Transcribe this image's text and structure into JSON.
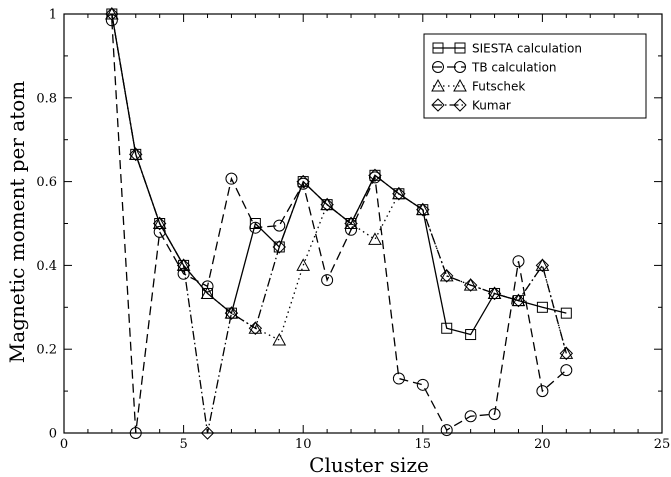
{
  "chart_data": {
    "type": "line",
    "xlabel": "Cluster size",
    "ylabel": "Magnetic moment per atom",
    "xlim": [
      0,
      25
    ],
    "ylim": [
      0,
      1
    ],
    "xticks": [
      0,
      5,
      10,
      15,
      20,
      25
    ],
    "yticks": [
      0,
      0.2,
      0.4,
      0.6,
      0.8,
      1
    ],
    "ytick_labels": [
      "0",
      "0.2",
      "0.4",
      "0.6",
      "0.8",
      "1"
    ],
    "grid": false,
    "legend_position": "top-right",
    "series": [
      {
        "name": "SIESTA  calculation",
        "marker": "square",
        "line_style": "solid",
        "x": [
          2,
          3,
          4,
          5,
          6,
          7,
          8,
          9,
          10,
          11,
          12,
          13,
          14,
          15,
          16,
          17,
          18,
          19,
          20,
          21
        ],
        "y": [
          1.0,
          0.665,
          0.5,
          0.4,
          0.333,
          0.286,
          0.5,
          0.444,
          0.6,
          0.545,
          0.5,
          0.615,
          0.571,
          0.533,
          0.25,
          0.235,
          0.333,
          0.316,
          0.3,
          0.286
        ]
      },
      {
        "name": "TB calculation",
        "marker": "circle",
        "line_style": "dashed",
        "x": [
          2,
          3,
          4,
          5,
          6,
          7,
          8,
          9,
          10,
          11,
          12,
          13,
          14,
          15,
          16,
          17,
          18,
          19,
          20,
          21
        ],
        "y": [
          0.985,
          0.0,
          0.48,
          0.38,
          0.35,
          0.607,
          0.49,
          0.495,
          0.595,
          0.365,
          0.485,
          0.61,
          0.13,
          0.115,
          0.007,
          0.04,
          0.045,
          0.41,
          0.1,
          0.15
        ]
      },
      {
        "name": "Futschek",
        "marker": "triangle",
        "line_style": "dotted",
        "x": [
          2,
          3,
          4,
          5,
          6,
          7,
          8,
          9,
          10,
          11,
          12,
          13,
          14,
          15,
          16,
          17,
          18,
          19,
          20,
          21
        ],
        "y": [
          1.0,
          0.665,
          0.5,
          0.4,
          0.333,
          0.286,
          0.25,
          0.222,
          0.4,
          0.545,
          0.5,
          0.462,
          0.571,
          0.533,
          0.375,
          0.353,
          0.333,
          0.316,
          0.4,
          0.19
        ]
      },
      {
        "name": "Kumar",
        "marker": "diamond",
        "line_style": "dash-dot",
        "x": [
          2,
          3,
          4,
          5,
          6,
          7,
          8,
          9,
          10,
          11,
          12,
          13,
          14,
          15,
          16,
          17,
          18,
          19,
          20,
          21
        ],
        "y": [
          1.0,
          0.665,
          0.5,
          0.4,
          0.0,
          0.286,
          0.25,
          0.444,
          0.6,
          0.545,
          0.5,
          0.615,
          0.571,
          0.533,
          0.375,
          0.353,
          0.333,
          0.316,
          0.4,
          0.19
        ]
      }
    ]
  }
}
